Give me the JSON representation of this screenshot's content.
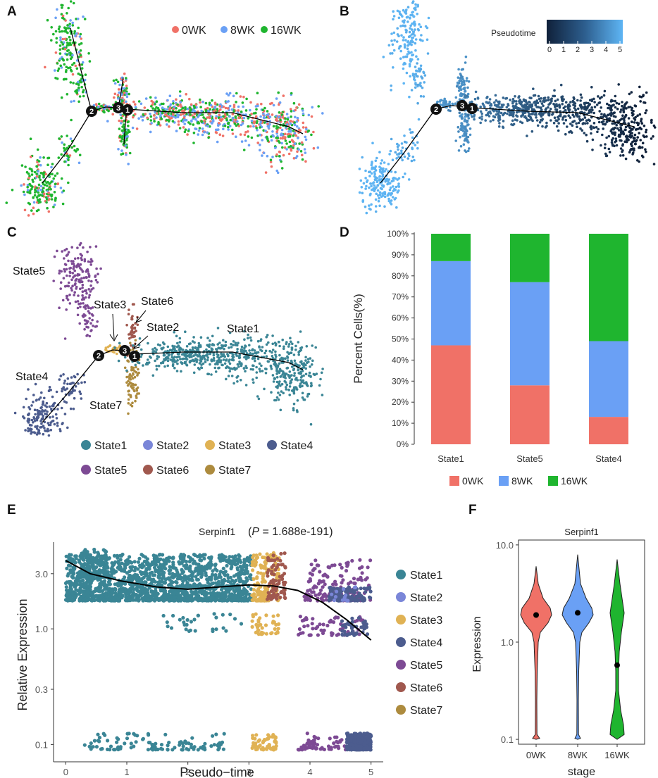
{
  "panels": {
    "a": {
      "label": "A",
      "legend": [
        "0WK",
        "8WK",
        "16WK"
      ]
    },
    "b": {
      "label": "B",
      "colorbar_title": "Pseudotime",
      "colorbar_ticks": [
        "0",
        "1",
        "2",
        "3",
        "4",
        "5"
      ]
    },
    "c": {
      "label": "C",
      "annotations": [
        "State5",
        "State3",
        "State6",
        "State2",
        "State1",
        "State4",
        "State7"
      ],
      "legend": [
        "State1",
        "State2",
        "State3",
        "State4",
        "State5",
        "State6",
        "State7"
      ]
    },
    "d": {
      "label": "D"
    },
    "e": {
      "label": "E"
    },
    "f": {
      "label": "F"
    }
  },
  "branch_nodes": [
    "1",
    "2",
    "3"
  ],
  "colors": {
    "wk0": "#f07167",
    "wk8": "#6aa0f5",
    "wk16": "#1fb52f",
    "State1": "#3a8595",
    "State2": "#7a86d8",
    "State3": "#e0b254",
    "State4": "#4c5c8e",
    "State5": "#7d4a94",
    "State6": "#a0584e",
    "State7": "#ad8b3e",
    "pt_dark": "#10213a",
    "pt_light": "#5eb5f4"
  },
  "chart_data": [
    {
      "panel": "D",
      "type": "bar",
      "stacked": true,
      "categories": [
        "State1",
        "State5",
        "State4"
      ],
      "series": [
        {
          "name": "0WK",
          "values": [
            47,
            28,
            13
          ]
        },
        {
          "name": "8WK",
          "values": [
            40,
            49,
            36
          ]
        },
        {
          "name": "16WK",
          "values": [
            13,
            23,
            51
          ]
        }
      ],
      "ylabel": "Percent Cells(%)",
      "ylim": [
        0,
        100
      ],
      "yticks": [
        "0%",
        "10%",
        "20%",
        "30%",
        "40%",
        "50%",
        "60%",
        "70%",
        "80%",
        "90%",
        "100%"
      ],
      "legend": [
        "0WK",
        "8WK",
        "16WK"
      ]
    },
    {
      "panel": "E",
      "type": "scatter",
      "title_gene": "Serpinf1",
      "title_stat_label": "P",
      "title_stat_value": "= 1.688e-191",
      "xlabel": "Pseudo−time",
      "ylabel": "Relative Expression",
      "xlim": [
        -0.2,
        5.2
      ],
      "ylim_log10": [
        -1.15,
        0.75
      ],
      "xticks": [
        "0",
        "1",
        "2",
        "3",
        "4",
        "5"
      ],
      "yticks": [
        "0.1",
        "0.3",
        "1.0",
        "3.0"
      ],
      "ytick_values": [
        0.1,
        0.3,
        1.0,
        3.0
      ],
      "legend": [
        "State1",
        "State2",
        "State3",
        "State4",
        "State5",
        "State6",
        "State7"
      ],
      "trend": {
        "x": [
          0,
          0.4,
          0.9,
          1.5,
          2.0,
          2.5,
          3.0,
          3.4,
          3.8,
          4.2,
          4.6,
          5.0
        ],
        "y": [
          3.9,
          3.0,
          2.6,
          2.3,
          2.2,
          2.3,
          2.4,
          2.35,
          2.15,
          1.7,
          1.2,
          0.8
        ]
      },
      "clusters": [
        {
          "state": "State1",
          "x": [
            0.0,
            3.05
          ],
          "y": [
            1.75,
            4.4
          ],
          "n": 1600
        },
        {
          "state": "State1",
          "x": [
            0.25,
            0.7
          ],
          "y": [
            2.8,
            4.9
          ],
          "n": 160
        },
        {
          "state": "State1",
          "x": [
            1.6,
            2.9
          ],
          "y": [
            0.95,
            1.35
          ],
          "n": 30
        },
        {
          "state": "State1",
          "x": [
            0.3,
            2.6
          ],
          "y": [
            0.09,
            0.125
          ],
          "n": 110
        },
        {
          "state": "State3",
          "x": [
            3.05,
            3.5
          ],
          "y": [
            1.75,
            4.6
          ],
          "n": 180
        },
        {
          "state": "State3",
          "x": [
            3.05,
            3.5
          ],
          "y": [
            0.9,
            1.35
          ],
          "n": 40
        },
        {
          "state": "State3",
          "x": [
            3.05,
            3.45
          ],
          "y": [
            0.09,
            0.125
          ],
          "n": 60
        },
        {
          "state": "State6",
          "x": [
            3.3,
            3.6
          ],
          "y": [
            1.8,
            4.6
          ],
          "n": 80
        },
        {
          "state": "State5",
          "x": [
            3.9,
            5.0
          ],
          "y": [
            1.75,
            4.0
          ],
          "n": 150
        },
        {
          "state": "State5",
          "x": [
            3.8,
            4.9
          ],
          "y": [
            0.88,
            1.3
          ],
          "n": 60
        },
        {
          "state": "State5",
          "x": [
            3.8,
            4.6
          ],
          "y": [
            0.09,
            0.125
          ],
          "n": 60
        },
        {
          "state": "State4",
          "x": [
            4.3,
            5.0
          ],
          "y": [
            1.75,
            2.3
          ],
          "n": 130
        },
        {
          "state": "State4",
          "x": [
            4.5,
            4.95
          ],
          "y": [
            0.88,
            1.3
          ],
          "n": 40
        },
        {
          "state": "State4",
          "x": [
            4.6,
            5.0
          ],
          "y": [
            0.09,
            0.125
          ],
          "n": 320
        },
        {
          "state": "State2",
          "x": [
            4.3,
            4.8
          ],
          "y": [
            1.75,
            2.3
          ],
          "n": 15
        }
      ]
    },
    {
      "panel": "F",
      "type": "violin",
      "title": "Serpinf1",
      "xlabel": "stage",
      "ylabel": "Expression",
      "categories": [
        "0WK",
        "8WK",
        "16WK"
      ],
      "median": [
        1.9,
        2.0,
        0.58
      ],
      "yticks": [
        "0.1",
        "1.0",
        "10.0"
      ],
      "ytick_values": [
        0.1,
        1.0,
        10.0
      ],
      "ylim_log10": [
        -1.05,
        1.05
      ]
    }
  ]
}
